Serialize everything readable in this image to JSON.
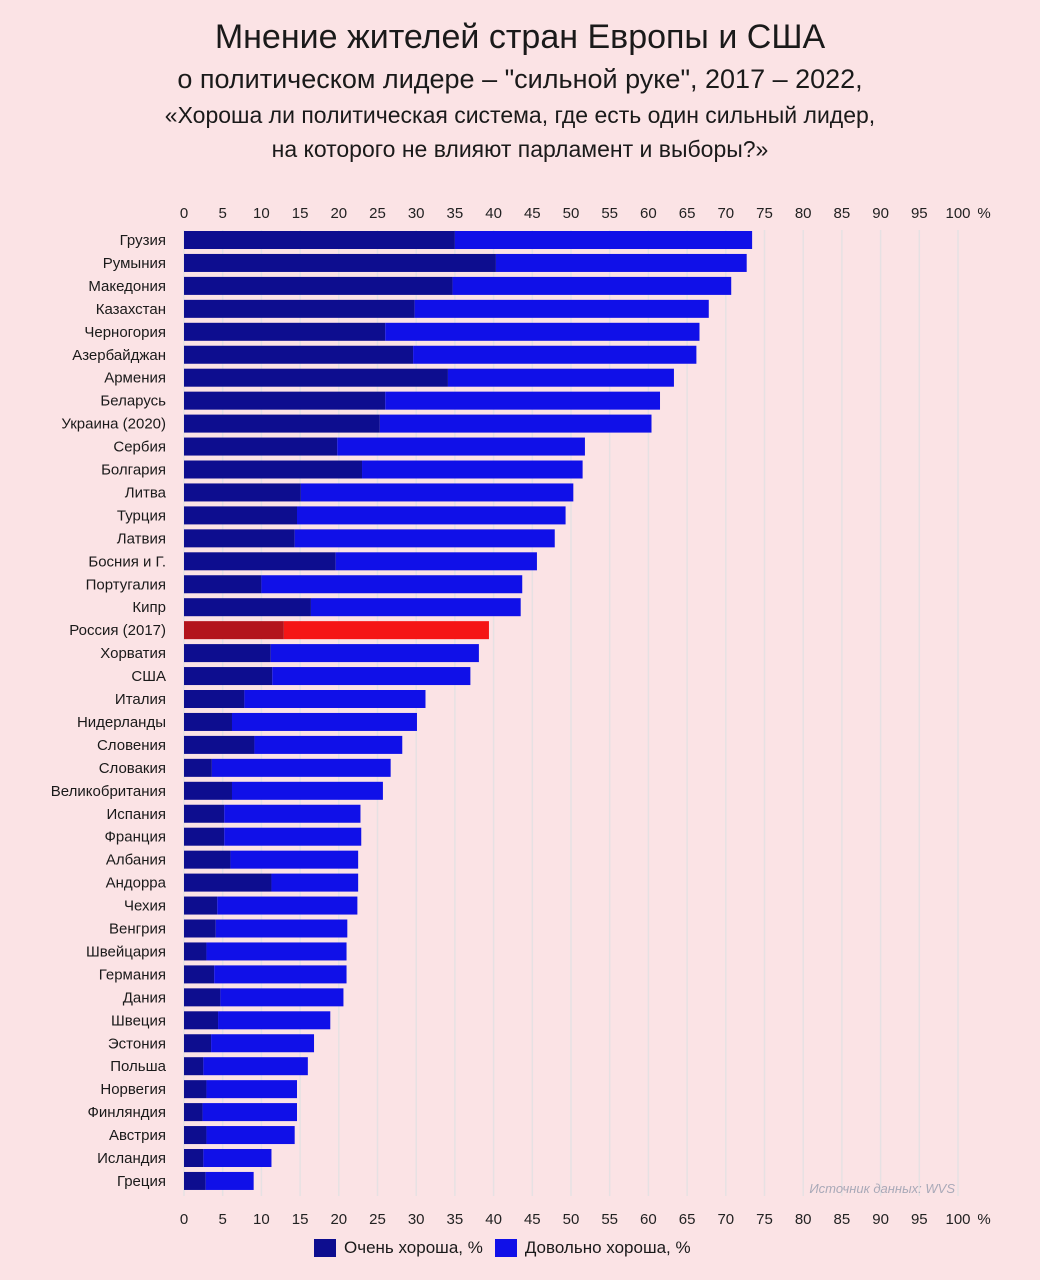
{
  "title": {
    "line1": "Мнение жителей стран Европы и США",
    "line2": "о политическом лидере  – \"сильной руке\", 2017 – 2022,",
    "line3": "«Хороша ли политическая система, где есть один сильный лидер,",
    "line4": "на которого не влияют парламент и выборы?»"
  },
  "colors": {
    "very_good": "#0d0d8f",
    "fairly_good": "#1010e8",
    "highlight_very_good": "#b3131c",
    "highlight_fairly_good": "#f51515",
    "gridline": "#e6e1e3"
  },
  "axis": {
    "unit": "%"
  },
  "source": "Источник данных: WVS",
  "legend": {
    "very_good": "Очень хороша, %",
    "fairly_good": "Довольно хороша, %"
  },
  "chart_data": {
    "type": "bar",
    "orientation": "horizontal",
    "stacked": true,
    "xlim": [
      0,
      100
    ],
    "xticks": [
      0,
      5,
      10,
      15,
      20,
      25,
      30,
      35,
      40,
      45,
      50,
      55,
      60,
      65,
      70,
      75,
      80,
      85,
      90,
      95,
      100
    ],
    "grid": true,
    "legend_position": "bottom",
    "highlight": "Россия (2017)",
    "categories": [
      "Грузия",
      "Румыния",
      "Македония",
      "Казахстан",
      "Черногория",
      "Азербайджан",
      "Армения",
      "Беларусь",
      "Украина (2020)",
      "Сербия",
      "Болгария",
      "Литва",
      "Турция",
      "Латвия",
      "Босния и Г.",
      "Португалия",
      "Кипр",
      "Россия (2017)",
      "Хорватия",
      "США",
      "Италия",
      "Нидерланды",
      "Словения",
      "Словакия",
      "Великобритания",
      "Испания",
      "Франция",
      "Албания",
      "Андорра",
      "Чехия",
      "Венгрия",
      "Швейцария",
      "Германия",
      "Дания",
      "Швеция",
      "Эстония",
      "Польша",
      "Норвегия",
      "Финляндия",
      "Австрия",
      "Исландия",
      "Греция"
    ],
    "series": [
      {
        "name": "Очень хороша, %",
        "values": [
          35,
          40.3,
          34.7,
          29.8,
          26,
          29.6,
          34.1,
          26,
          25.3,
          19.8,
          23,
          15.1,
          14.6,
          14.3,
          19.6,
          10,
          16.4,
          12.9,
          11.2,
          11.4,
          7.8,
          6.2,
          9.1,
          3.6,
          6.2,
          5.2,
          5.2,
          6,
          11.3,
          4.3,
          4.1,
          2.9,
          3.9,
          4.7,
          4.4,
          3.5,
          2.5,
          2.9,
          2.4,
          2.9,
          2.5,
          2.8
        ]
      },
      {
        "name": "Довольно хороша, %",
        "values": [
          38.4,
          32.4,
          36,
          38,
          40.6,
          36.6,
          29.2,
          35.5,
          35.1,
          32,
          28.5,
          35.2,
          34.7,
          33.6,
          26,
          33.7,
          27.1,
          26.5,
          26.9,
          25.6,
          23.4,
          23.9,
          19.1,
          23.1,
          19.5,
          17.6,
          17.7,
          16.5,
          11.2,
          18.1,
          17,
          18.1,
          17.1,
          15.9,
          14.5,
          13.3,
          13.5,
          11.7,
          12.2,
          11.4,
          8.8,
          6.2
        ]
      }
    ]
  }
}
